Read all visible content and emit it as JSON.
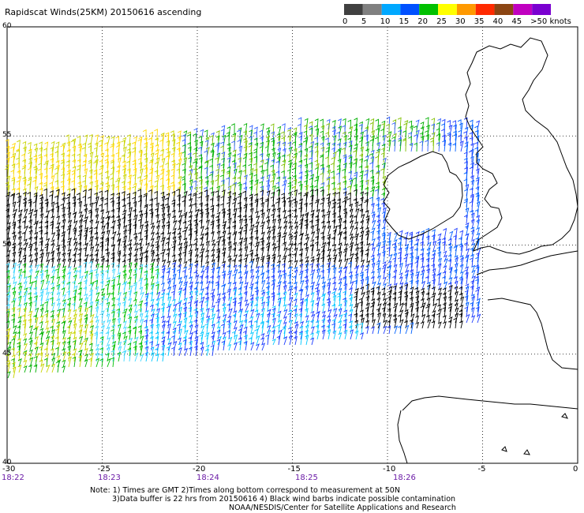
{
  "title": "Rapidscat Winds(25KM) 20150616 ascending",
  "colorbar": {
    "labels": [
      "0",
      "5",
      "10",
      "15",
      "20",
      "25",
      "30",
      "35",
      "40",
      "45",
      ">50 knots"
    ],
    "colors": [
      "#404040",
      "#808080",
      "#00a8ff",
      "#0050ff",
      "#00c000",
      "#ffff00",
      "#ff9900",
      "#ff2a00",
      "#8b4513",
      "#c000c0",
      "#7a00d0"
    ]
  },
  "axes": {
    "lon_labels": [
      "-30",
      "-25",
      "-20",
      "-15",
      "-10",
      "-5",
      "0"
    ],
    "lat_labels": [
      "40",
      "45",
      "50",
      "55",
      "60"
    ]
  },
  "times": [
    "18:22",
    "18:23",
    "18:24",
    "18:25",
    "18:26"
  ],
  "notes": {
    "line1": "Note: 1) Times are GMT 2)Times along bottom correspond to measurement at 50N",
    "line2": "3)Data buffer is 22 hrs from 20150616 4) Black wind barbs indicate possible contamination",
    "line3": "NOAA/NESDIS/Center for Satellite Applications and Research"
  }
}
